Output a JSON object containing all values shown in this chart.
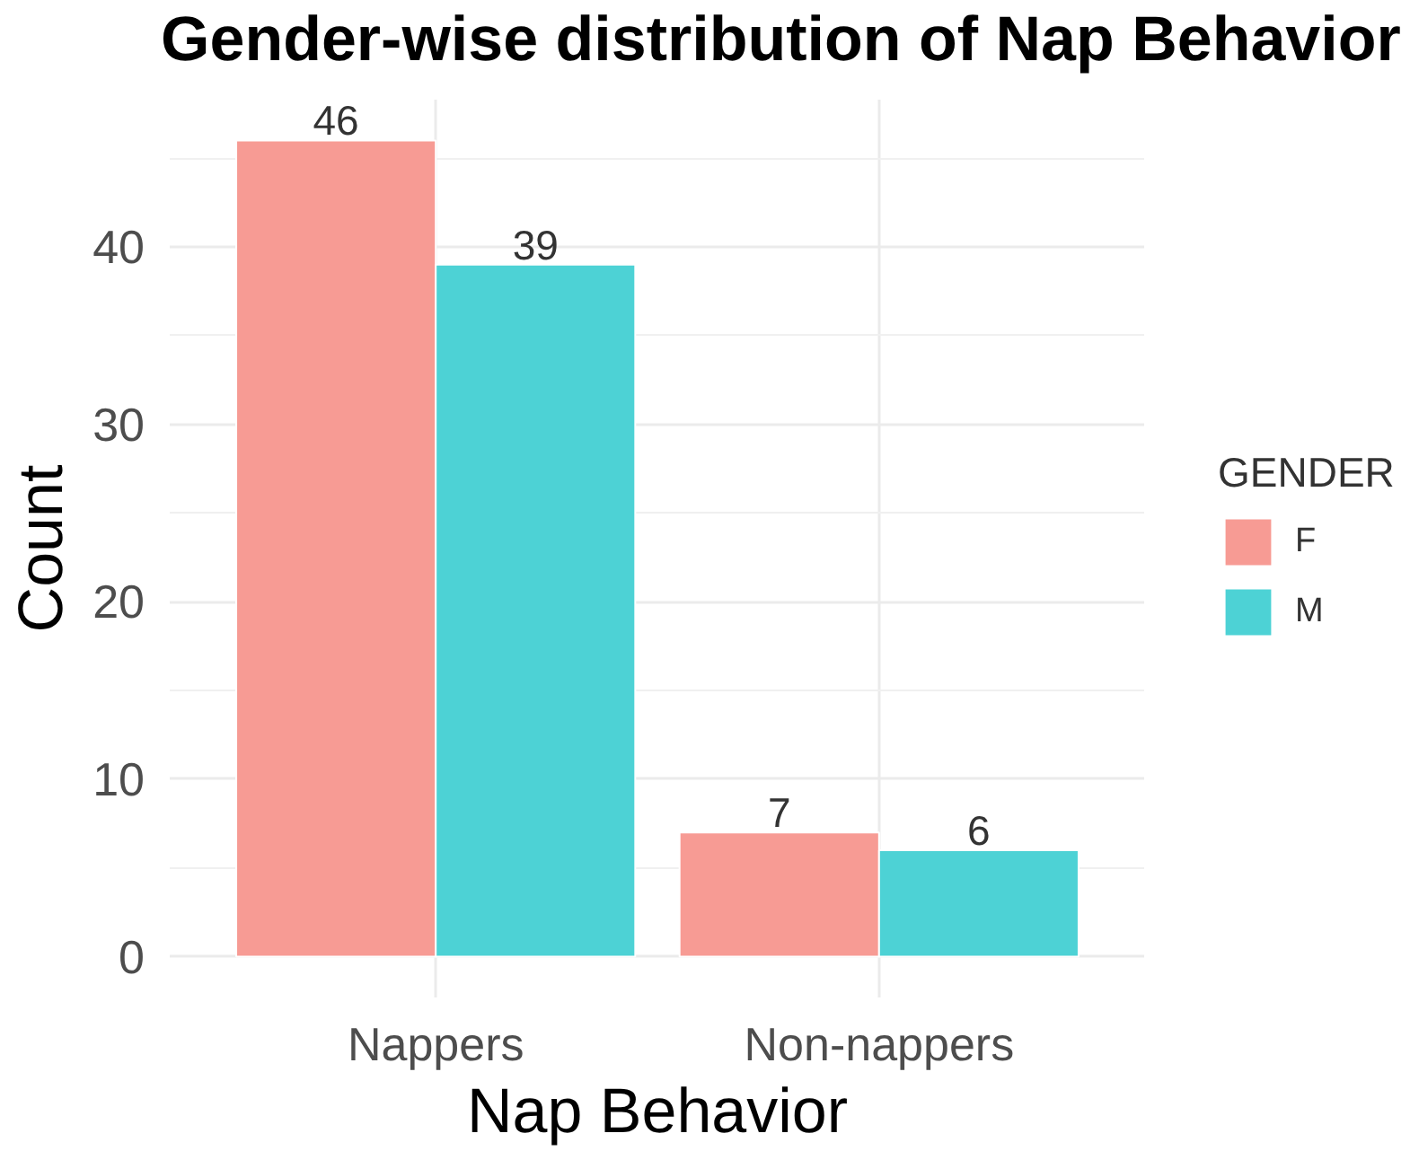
{
  "chart_data": {
    "type": "bar",
    "title": "Gender-wise distribution of Nap Behavior",
    "xlabel": "Nap Behavior",
    "ylabel": "Count",
    "legend_title": "GENDER",
    "categories": [
      "Nappers",
      "Non-nappers"
    ],
    "series": [
      {
        "name": "F",
        "color": "#f79b94",
        "values": [
          46,
          7
        ]
      },
      {
        "name": "M",
        "color": "#4dd2d5",
        "values": [
          39,
          6
        ]
      }
    ],
    "ylim": [
      -2.3,
      48.3
    ],
    "yticks": [
      0,
      {
        "value": 5,
        "label": null
      },
      10,
      {
        "value": 15,
        "label": null
      },
      20,
      {
        "value": 25,
        "label": null
      },
      30,
      {
        "value": 35,
        "label": null
      },
      40,
      {
        "value": 45,
        "label": null
      }
    ],
    "grid": true,
    "legend": "right",
    "data_labels": true
  }
}
